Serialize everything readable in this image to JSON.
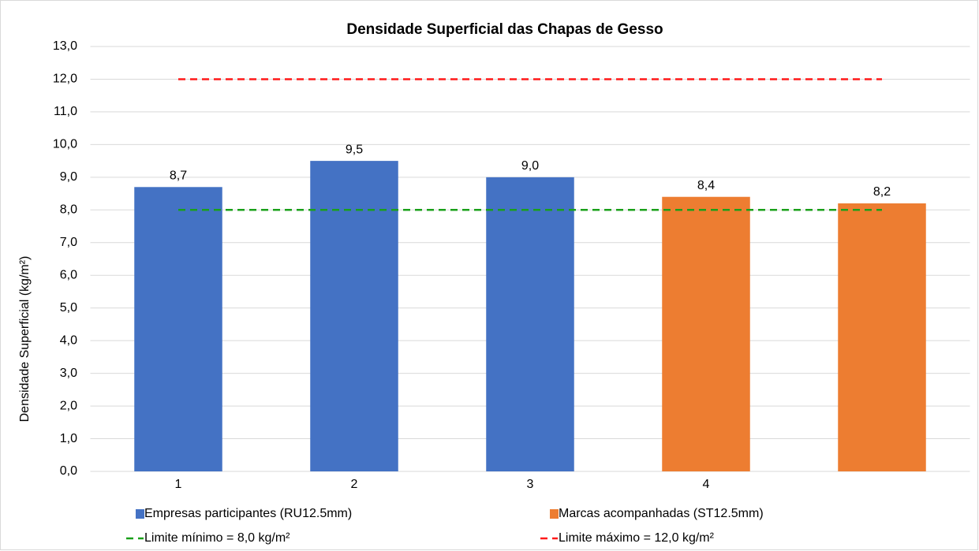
{
  "chart_data": {
    "type": "bar",
    "title": "Densidade Superficial das Chapas de Gesso",
    "y_label": "Densidade Superficial (kg/m²)",
    "categories": [
      "1",
      "2",
      "3",
      "4",
      null
    ],
    "series": [
      {
        "name": "Empresas participantes (RU12.5mm)",
        "color": "#4472c4",
        "values": [
          8.7,
          9.5,
          9.0,
          null,
          null
        ],
        "value_labels": [
          "8,7",
          "9,5",
          "9,0",
          null,
          null
        ]
      },
      {
        "name": "Marcas acompanhadas (ST12.5mm)",
        "color": "#ed7d31",
        "values": [
          null,
          null,
          null,
          8.4,
          8.2
        ],
        "value_labels": [
          null,
          null,
          null,
          "8,4",
          "8,2"
        ]
      }
    ],
    "reference_lines": [
      {
        "name": "Limite mínimo = 8,0 kg/m²",
        "value": 8,
        "color": "#1aa01a"
      },
      {
        "name": "Limite máximo = 12,0 kg/m²",
        "value": 12,
        "color": "#ff1a1a"
      }
    ],
    "ylim": [
      0,
      13
    ],
    "yticks": [
      {
        "value": 0,
        "label": "0,0"
      },
      {
        "value": 1,
        "label": "1,0"
      },
      {
        "value": 2,
        "label": "2,0"
      },
      {
        "value": 3,
        "label": "3,0"
      },
      {
        "value": 4,
        "label": "4,0"
      },
      {
        "value": 5,
        "label": "5,0"
      },
      {
        "value": 6,
        "label": "6,0"
      },
      {
        "value": 7,
        "label": "7,0"
      },
      {
        "value": 8,
        "label": "8,0"
      },
      {
        "value": 9,
        "label": "9,0"
      },
      {
        "value": 10,
        "label": "10,0"
      },
      {
        "value": 11,
        "label": "11,0"
      },
      {
        "value": 12,
        "label": "12,0"
      },
      {
        "value": 13,
        "label": "13,0"
      }
    ],
    "grid": true
  }
}
